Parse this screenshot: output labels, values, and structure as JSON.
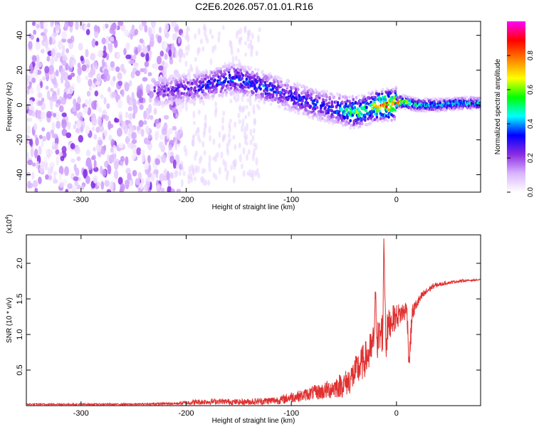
{
  "title": "C2E6.2026.057.01.01.R16",
  "chart_data": [
    {
      "type": "heatmap",
      "title": "C2E6.2026.057.01.01.R16",
      "xlabel": "Height of straight line (km)",
      "ylabel": "Frequency (Hz)",
      "xlim": [
        -352,
        80
      ],
      "ylim": [
        -50,
        48
      ],
      "x_ticks": [
        "-300",
        "-200",
        "-100",
        "0"
      ],
      "y_ticks": [
        "40",
        "20",
        "0",
        "-20",
        "-40"
      ],
      "colorbar": {
        "label": "Normalized spectral amplitude",
        "range": [
          0.0,
          1.0
        ],
        "ticks": [
          "0.0",
          "0.2",
          "0.4",
          "0.6",
          "0.8"
        ],
        "colors": [
          "#ffffff",
          "#d9b3ff",
          "#8a2be2",
          "#0000ff",
          "#00ffff",
          "#00ff00",
          "#ffff00",
          "#ff8000",
          "#ff0000",
          "#ff00ff"
        ]
      },
      "ridge": {
        "x": [
          -230,
          -210,
          -190,
          -170,
          -155,
          -140,
          -120,
          -100,
          -80,
          -60,
          -45,
          -35,
          -25,
          -15,
          -5,
          5,
          20,
          40,
          60,
          80
        ],
        "y": [
          8,
          9,
          10,
          13,
          15,
          13,
          9,
          5,
          1,
          -2,
          -4,
          -4,
          -2,
          0,
          0,
          2,
          0,
          0,
          1,
          1
        ],
        "peak_amplitude": [
          0.25,
          0.3,
          0.35,
          0.4,
          0.45,
          0.4,
          0.4,
          0.35,
          0.4,
          0.4,
          0.6,
          0.65,
          0.6,
          0.9,
          0.95,
          0.85,
          0.55,
          0.5,
          0.5,
          0.5
        ]
      },
      "noise_region": {
        "x_range": [
          -352,
          -205
        ],
        "y_range": [
          -50,
          48
        ],
        "amplitude": 0.15
      }
    },
    {
      "type": "line",
      "xlabel": "Height of straight line (km)",
      "ylabel": "SNR (10 * v/v)",
      "multiplier_label": "(x10",
      "multiplier_exp": "4",
      "multiplier_close": ")",
      "xlim": [
        -352,
        80
      ],
      "ylim": [
        0,
        2.4
      ],
      "x_ticks": [
        "-300",
        "-200",
        "-100",
        "0"
      ],
      "y_ticks": [
        "2.0",
        "1.5",
        "1.0",
        "0.5"
      ],
      "color": "#e03030",
      "series": [
        {
          "x": [
            -352,
            -300,
            -250,
            -210,
            -190,
            -170,
            -150,
            -130,
            -110,
            -100,
            -90,
            -80,
            -70,
            -60,
            -50,
            -45,
            -40,
            -35,
            -30,
            -25,
            -22,
            -20,
            -18,
            -15,
            -13,
            -12,
            -10,
            -8,
            -5,
            0,
            5,
            10,
            12,
            15,
            20,
            25,
            30,
            35,
            40,
            50,
            60,
            70,
            80
          ],
          "y": [
            0.02,
            0.02,
            0.02,
            0.03,
            0.05,
            0.06,
            0.05,
            0.06,
            0.08,
            0.12,
            0.14,
            0.18,
            0.2,
            0.25,
            0.3,
            0.35,
            0.45,
            0.55,
            0.65,
            0.75,
            0.85,
            1.5,
            0.9,
            1.0,
            1.05,
            2.35,
            0.9,
            1.1,
            1.2,
            1.25,
            1.3,
            1.35,
            0.6,
            1.3,
            1.45,
            1.55,
            1.62,
            1.68,
            1.7,
            1.73,
            1.75,
            1.76,
            1.77
          ],
          "noise_amplitude": [
            0.01,
            0.01,
            0.01,
            0.02,
            0.04,
            0.04,
            0.04,
            0.05,
            0.06,
            0.08,
            0.08,
            0.1,
            0.12,
            0.15,
            0.18,
            0.2,
            0.22,
            0.25,
            0.25,
            0.28,
            0.3,
            0.2,
            0.3,
            0.3,
            0.3,
            0.0,
            0.3,
            0.25,
            0.2,
            0.18,
            0.15,
            0.15,
            0.2,
            0.12,
            0.08,
            0.06,
            0.05,
            0.04,
            0.03,
            0.02,
            0.02,
            0.01,
            0.01
          ]
        }
      ]
    }
  ]
}
